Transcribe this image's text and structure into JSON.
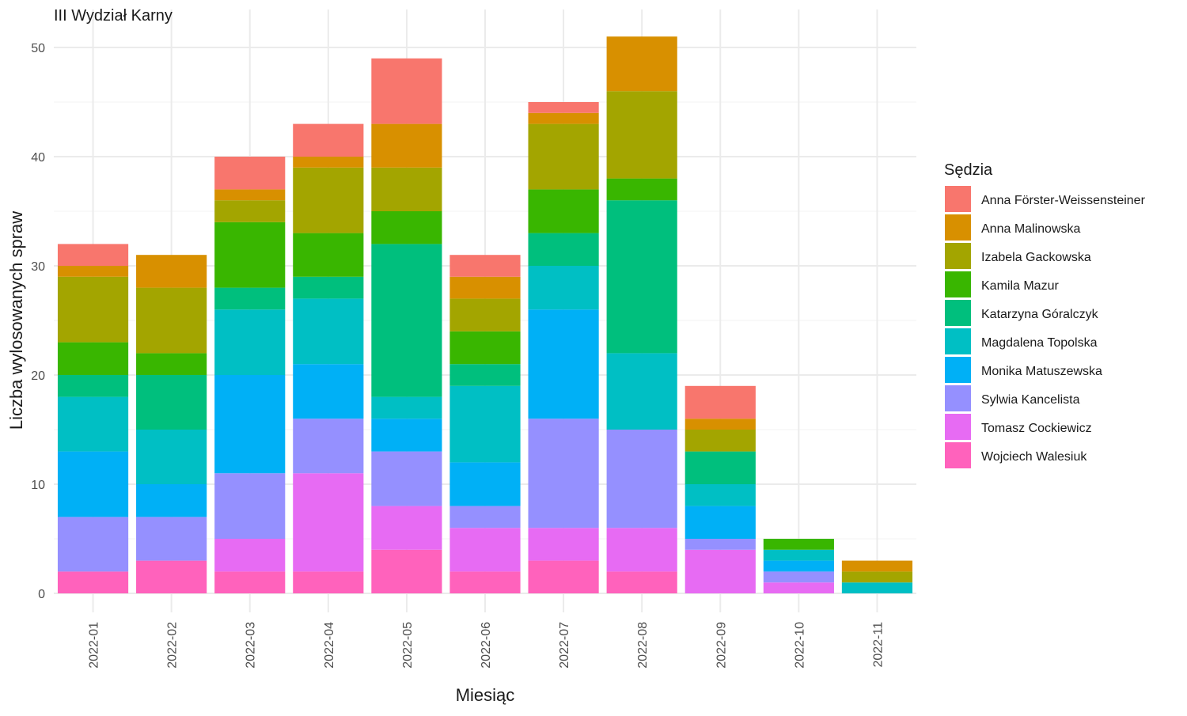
{
  "chart_data": {
    "type": "bar",
    "stacked": true,
    "title": "III Wydział Karny",
    "xlabel": "Miesiąc",
    "ylabel": "Liczba wylosowanych spraw",
    "ylim": [
      0,
      52
    ],
    "yticks": [
      0,
      10,
      20,
      30,
      40,
      50
    ],
    "grid": true,
    "legend_title": "Sędzia",
    "legend_position": "right",
    "categories": [
      "2022-01",
      "2022-02",
      "2022-03",
      "2022-04",
      "2022-05",
      "2022-06",
      "2022-07",
      "2022-08",
      "2022-09",
      "2022-10",
      "2022-11"
    ],
    "series": [
      {
        "name": "Anna Förster-Weissensteiner",
        "color": "#F8766D",
        "values": [
          2,
          0,
          3,
          3,
          6,
          2,
          1,
          0,
          3,
          0,
          0
        ]
      },
      {
        "name": "Anna Malinowska",
        "color": "#D89000",
        "values": [
          1,
          3,
          1,
          1,
          4,
          2,
          1,
          5,
          1,
          0,
          1
        ]
      },
      {
        "name": "Izabela Gackowska",
        "color": "#A3A500",
        "values": [
          6,
          6,
          2,
          6,
          4,
          3,
          6,
          8,
          2,
          0,
          1
        ]
      },
      {
        "name": "Kamila Mazur",
        "color": "#39B600",
        "values": [
          3,
          2,
          6,
          4,
          3,
          3,
          4,
          2,
          0,
          1,
          0
        ]
      },
      {
        "name": "Katarzyna Góralczyk",
        "color": "#00BF7D",
        "values": [
          2,
          5,
          2,
          2,
          14,
          2,
          3,
          14,
          3,
          0,
          0
        ]
      },
      {
        "name": "Magdalena Topolska",
        "color": "#00BFC4",
        "values": [
          5,
          5,
          6,
          6,
          2,
          7,
          4,
          7,
          2,
          1,
          1
        ]
      },
      {
        "name": "Monika Matuszewska",
        "color": "#00B0F6",
        "values": [
          6,
          3,
          9,
          5,
          3,
          4,
          10,
          0,
          3,
          1,
          0
        ]
      },
      {
        "name": "Sylwia Kancelista",
        "color": "#9590FF",
        "values": [
          5,
          4,
          6,
          5,
          5,
          2,
          10,
          9,
          1,
          1,
          0
        ]
      },
      {
        "name": "Tomasz Cockiewicz",
        "color": "#E76BF3",
        "values": [
          0,
          0,
          3,
          9,
          4,
          4,
          3,
          4,
          4,
          1,
          0
        ]
      },
      {
        "name": "Wojciech Walesiuk",
        "color": "#FF62BC",
        "values": [
          2,
          3,
          2,
          2,
          4,
          2,
          3,
          2,
          0,
          0,
          0
        ]
      }
    ]
  }
}
